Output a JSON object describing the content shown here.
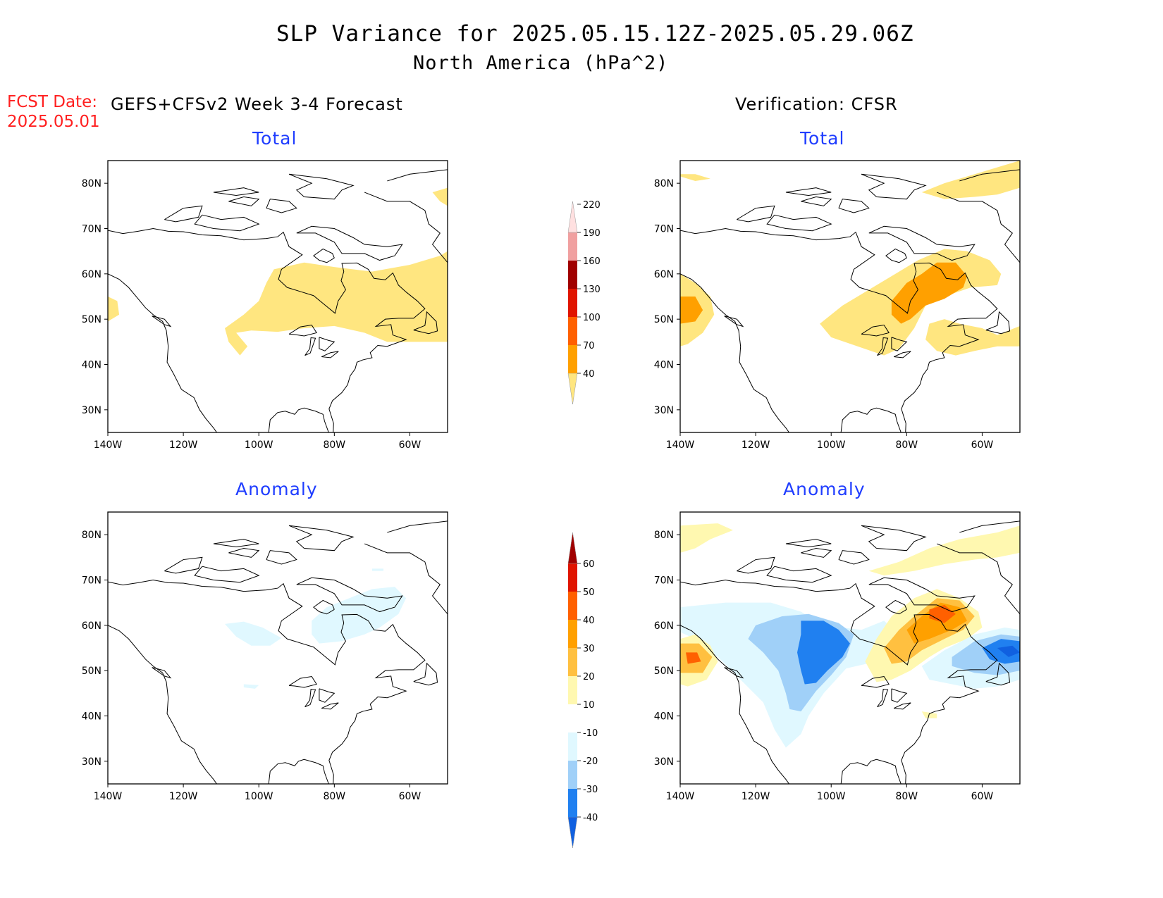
{
  "header": {
    "title": "SLP Variance for 2025.05.15.12Z-2025.05.29.06Z",
    "subtitle": "North America (hPa^2)",
    "fcst_label": "FCST Date:",
    "fcst_date": "2025.05.01",
    "left_heading": "GEFS+CFSv2 Week 3-4 Forecast",
    "right_heading": "Verification: CFSR"
  },
  "axes": {
    "lat_labels": [
      "80N",
      "70N",
      "60N",
      "50N",
      "40N",
      "30N"
    ],
    "lon_labels": [
      "140W",
      "120W",
      "100W",
      "80W",
      "60W"
    ]
  },
  "panels": [
    {
      "id": "fcst-total",
      "title": "Total"
    },
    {
      "id": "verif-total",
      "title": "Total"
    },
    {
      "id": "fcst-anomaly",
      "title": "Anomaly"
    },
    {
      "id": "verif-anomaly",
      "title": "Anomaly"
    }
  ],
  "colorbars": {
    "total": {
      "levels": [
        "40",
        "70",
        "100",
        "130",
        "160",
        "190",
        "220"
      ],
      "colors": [
        "#ffe680",
        "#ffa000",
        "#ff6000",
        "#e01400",
        "#a00000",
        "#f0a0a0",
        "#ffe0e0"
      ]
    },
    "anomaly": {
      "levels": [
        "-40",
        "-30",
        "-20",
        "-10",
        "10",
        "20",
        "30",
        "40",
        "50",
        "60"
      ],
      "colors": [
        "#1060e0",
        "#2080f0",
        "#a0d0f8",
        "#e0f8ff",
        "#ffffff",
        "#fff8b0",
        "#ffc040",
        "#ffa000",
        "#ff6000",
        "#e01400",
        "#a00000"
      ]
    }
  }
}
